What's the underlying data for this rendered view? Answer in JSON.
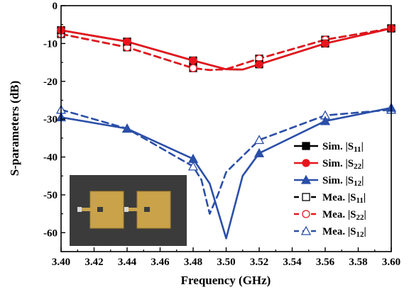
{
  "chart_data": {
    "type": "line",
    "title": "",
    "xlabel": "Frequency (GHz)",
    "ylabel": "S-parameters (dB)",
    "xlim": [
      3.4,
      3.6
    ],
    "ylim": [
      -65,
      0
    ],
    "xticks": [
      "3.40",
      "3.42",
      "3.44",
      "3.46",
      "3.48",
      "3.50",
      "3.52",
      "3.54",
      "3.56",
      "3.58",
      "3.60"
    ],
    "yticks": [
      "0",
      "-10",
      "-20",
      "-30",
      "-40",
      "-50",
      "-60"
    ],
    "grid": false,
    "legend_position": "bottom-right",
    "inset_image": "photo of two fabricated antenna patches on dark substrate",
    "series": [
      {
        "name": "Sim. |S11|",
        "prefix": "Sim. |S",
        "subscript": "11",
        "suffix": "|",
        "color": "#000000",
        "dash": "solid",
        "marker": "filled-square",
        "x": [
          3.4,
          3.44,
          3.48,
          3.5,
          3.51,
          3.52,
          3.56,
          3.6
        ],
        "y": [
          -6.5,
          -9.5,
          -14.5,
          -16.8,
          -16.9,
          -15.5,
          -10.0,
          -6.0
        ]
      },
      {
        "name": "Sim. |S22|",
        "prefix": "Sim. |S",
        "subscript": "22",
        "suffix": "|",
        "color": "#e8141c",
        "dash": "solid",
        "marker": "filled-circle",
        "x": [
          3.4,
          3.44,
          3.48,
          3.5,
          3.51,
          3.52,
          3.56,
          3.6
        ],
        "y": [
          -6.5,
          -9.5,
          -14.5,
          -16.8,
          -16.9,
          -15.5,
          -10.0,
          -6.0
        ]
      },
      {
        "name": "Sim. |S12|",
        "prefix": "Sim. |S",
        "subscript": "12",
        "suffix": "|",
        "color": "#2b4fa8",
        "dash": "solid",
        "marker": "filled-triangle",
        "x": [
          3.4,
          3.44,
          3.48,
          3.49,
          3.5,
          3.51,
          3.52,
          3.56,
          3.6
        ],
        "y": [
          -29.5,
          -32.5,
          -40.5,
          -47.0,
          -61.5,
          -45.0,
          -39.0,
          -30.5,
          -27.0
        ]
      },
      {
        "name": "Mea. |S11|",
        "prefix": "Mea. |S",
        "subscript": "11",
        "suffix": "|",
        "color": "#000000",
        "dash": "dashed",
        "marker": "open-square",
        "x": [
          3.4,
          3.44,
          3.48,
          3.49,
          3.5,
          3.52,
          3.56,
          3.6
        ],
        "y": [
          -7.5,
          -11.0,
          -16.5,
          -17.0,
          -16.8,
          -14.0,
          -9.0,
          -6.0
        ]
      },
      {
        "name": "Mea. |S22|",
        "prefix": "Mea. |S",
        "subscript": "22",
        "suffix": "|",
        "color": "#e8141c",
        "dash": "dashed",
        "marker": "open-circle",
        "x": [
          3.4,
          3.44,
          3.48,
          3.49,
          3.5,
          3.52,
          3.56,
          3.6
        ],
        "y": [
          -7.5,
          -11.0,
          -16.5,
          -17.0,
          -16.8,
          -14.0,
          -9.0,
          -6.0
        ]
      },
      {
        "name": "Mea. |S12|",
        "prefix": "Mea. |S",
        "subscript": "12",
        "suffix": "|",
        "color": "#2b4fa8",
        "dash": "dashed",
        "marker": "open-triangle",
        "x": [
          3.4,
          3.44,
          3.48,
          3.485,
          3.49,
          3.495,
          3.5,
          3.52,
          3.56,
          3.6
        ],
        "y": [
          -27.5,
          -32.5,
          -42.5,
          -46.0,
          -55.0,
          -50.0,
          -44.0,
          -35.5,
          -29.0,
          -27.5
        ]
      }
    ]
  }
}
